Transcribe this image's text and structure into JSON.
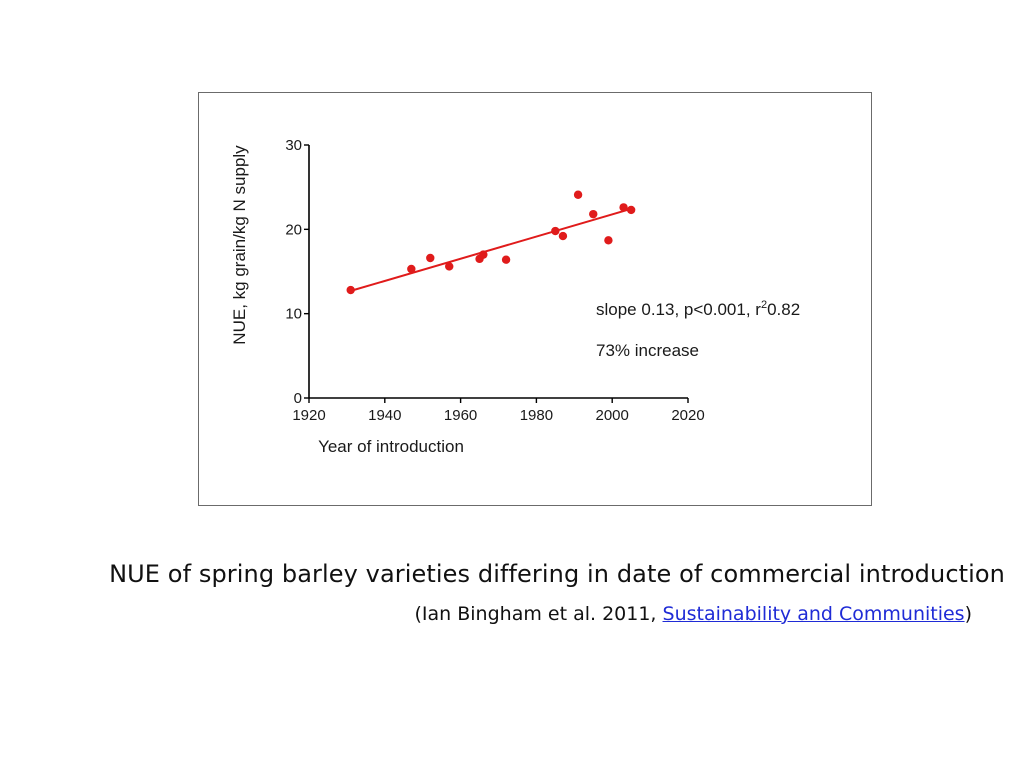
{
  "chart_data": {
    "type": "scatter",
    "xlabel": "Year of introduction",
    "ylabel": "NUE, kg grain/kg N supply",
    "xlim": [
      1920,
      2020
    ],
    "ylim": [
      0,
      30
    ],
    "xticks": [
      1920,
      1940,
      1960,
      1980,
      2000,
      2020
    ],
    "yticks": [
      0,
      10,
      20,
      30
    ],
    "grid": false,
    "series": [
      {
        "color": "#e01b1b",
        "x": [
          1931,
          1947,
          1952,
          1957,
          1965,
          1966,
          1972,
          1985,
          1987,
          1991,
          1995,
          1999,
          2003,
          2005
        ],
        "y": [
          12.8,
          15.3,
          16.6,
          15.6,
          16.5,
          17.0,
          16.4,
          19.8,
          19.2,
          24.1,
          21.8,
          18.7,
          22.6,
          22.3
        ]
      }
    ],
    "fit_line": {
      "x": [
        1931,
        2004
      ],
      "y": [
        12.7,
        22.3
      ],
      "color": "#e01b1b"
    },
    "annotations": {
      "stats_prefix": "slope 0.13, p<0.001, r",
      "stats_sup": "2",
      "stats_suffix": "0.82",
      "increase": "73% increase"
    }
  },
  "caption": {
    "main": "NUE of spring barley varieties differing in date of commercial introduction",
    "citation_open": "(Ian Bingham et al. 2011, ",
    "citation_link": "Sustainability and Communities",
    "citation_close": ")"
  }
}
